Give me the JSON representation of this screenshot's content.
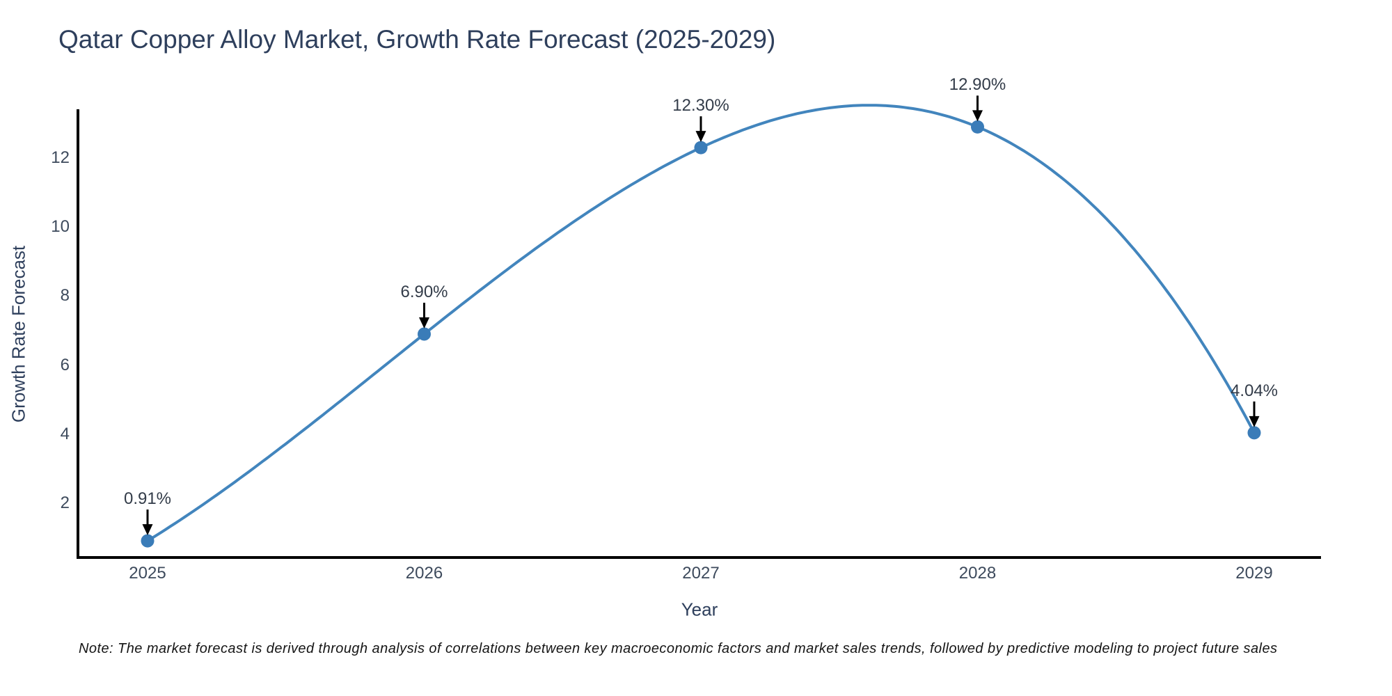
{
  "chart_data": {
    "type": "line",
    "title": "Qatar Copper Alloy Market, Growth Rate Forecast (2025-2029)",
    "xlabel": "Year",
    "ylabel": "Growth Rate Forecast",
    "x": [
      2025,
      2026,
      2027,
      2028,
      2029
    ],
    "x_tick_labels": [
      "2025",
      "2026",
      "2027",
      "2028",
      "2029"
    ],
    "y_tick_values": [
      2,
      4,
      6,
      8,
      10,
      12
    ],
    "series": [
      {
        "name": "Growth Rate Forecast",
        "values": [
          0.91,
          6.9,
          12.3,
          12.9,
          4.04
        ],
        "point_labels": [
          "0.91%",
          "6.90%",
          "12.30%",
          "12.90%",
          "4.04%"
        ]
      }
    ],
    "ylim_shown": [
      0.45,
      13.4
    ],
    "grid": false,
    "legend": "none",
    "smoothed_line": true,
    "annotation_arrows": true,
    "colors": {
      "line": "#4285bd",
      "marker": "#3a7cb8",
      "axis": "#000000",
      "arrow": "#000000",
      "title_text": "#2e3f5c",
      "tick_text": "#3d4a5c",
      "annotation_text": "#333c49"
    }
  },
  "note": "Note: The market forecast is derived through analysis of correlations between key macroeconomic factors and market sales trends, followed by predictive modeling to project future sales"
}
